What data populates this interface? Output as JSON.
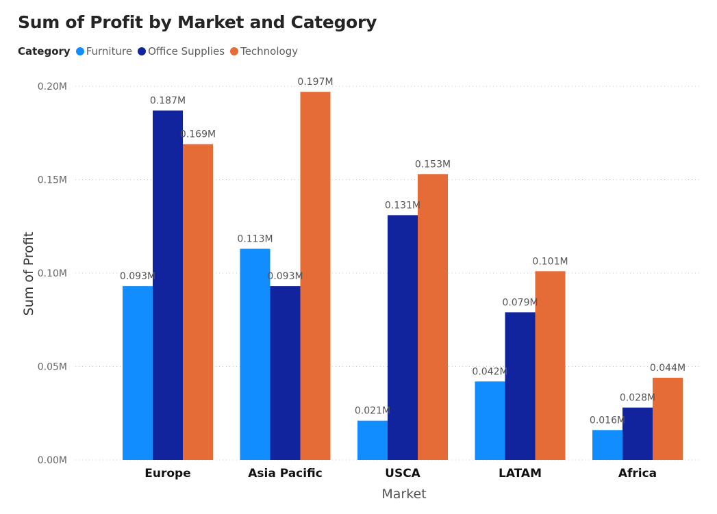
{
  "chart_data": {
    "type": "bar",
    "title": "Sum of Profit by Market and Category",
    "legend_title": "Category",
    "legend_position": "top-left",
    "xlabel": "Market",
    "ylabel": "Sum of Profit",
    "ylim": [
      0,
      0.2
    ],
    "yticks": [
      "0.00M",
      "0.05M",
      "0.10M",
      "0.15M",
      "0.20M"
    ],
    "grid": true,
    "categories": [
      "Europe",
      "Asia Pacific",
      "USCA",
      "LATAM",
      "Africa"
    ],
    "series": [
      {
        "name": "Furniture",
        "color": "#118dff",
        "values": [
          0.093,
          0.113,
          0.021,
          0.042,
          0.016
        ],
        "labels": [
          "0.093M",
          "0.113M",
          "0.021M",
          "0.042M",
          "0.016M"
        ]
      },
      {
        "name": "Office Supplies",
        "color": "#12239e",
        "values": [
          0.187,
          0.093,
          0.131,
          0.079,
          0.028
        ],
        "labels": [
          "0.187M",
          "0.093M",
          "0.131M",
          "0.079M",
          "0.028M"
        ]
      },
      {
        "name": "Technology",
        "color": "#e66c37",
        "values": [
          0.169,
          0.197,
          0.153,
          0.101,
          0.044
        ],
        "labels": [
          "0.169M",
          "0.197M",
          "0.153M",
          "0.101M",
          "0.044M"
        ]
      }
    ]
  }
}
